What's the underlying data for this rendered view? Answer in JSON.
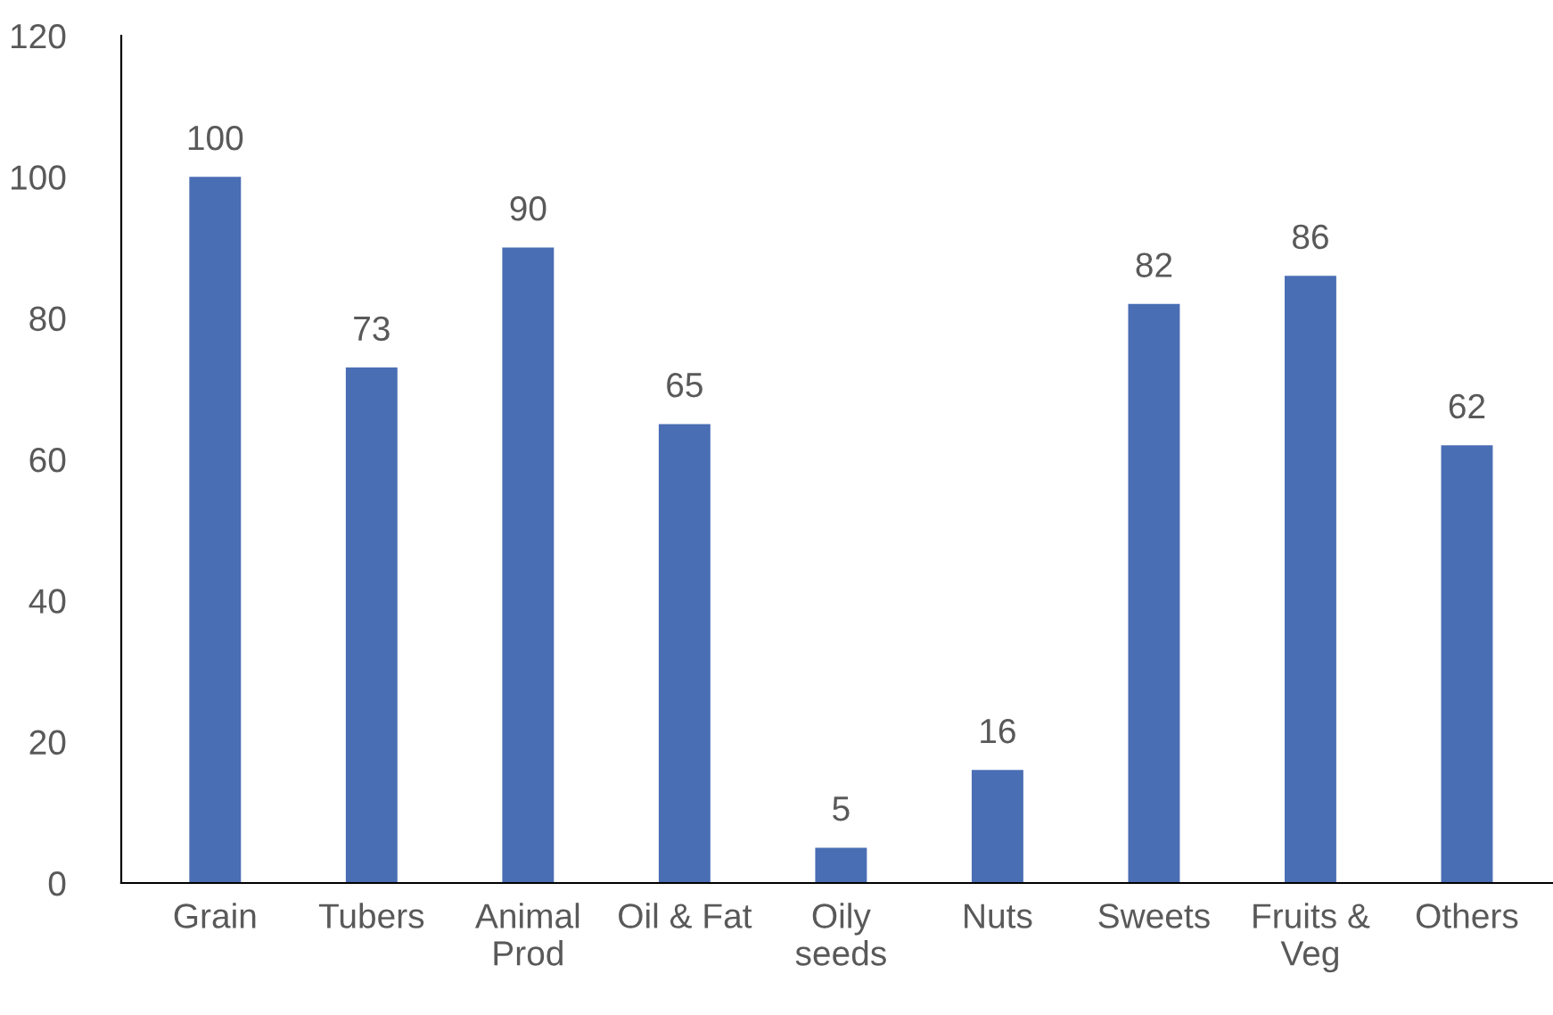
{
  "chart_data": {
    "type": "bar",
    "categories": [
      "Grain",
      "Tubers",
      "Animal\nProd",
      "Oil & Fat",
      "Oily\nseeds",
      "Nuts",
      "Sweets",
      "Fruits &\nVeg",
      "Others"
    ],
    "values": [
      100,
      73,
      90,
      65,
      5,
      16,
      82,
      86,
      62
    ],
    "color": "#4a6eb4",
    "ylim": [
      0,
      120
    ],
    "yticks": [
      0,
      20,
      40,
      60,
      80,
      100,
      120
    ],
    "grid": false,
    "data_labels": true
  }
}
